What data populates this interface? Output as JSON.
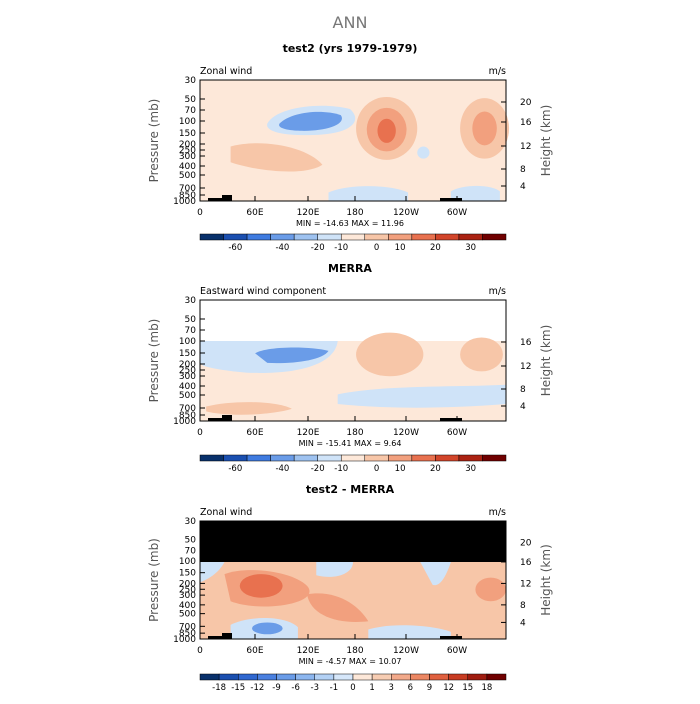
{
  "figure": {
    "title": "ANN"
  },
  "colors": {
    "scale": [
      "#08306b",
      "#1a4fb0",
      "#3f7be0",
      "#6a9ce8",
      "#9ec2f0",
      "#cfe3f8",
      "#fde8d9",
      "#f7c6a8",
      "#f2a07e",
      "#e8714f",
      "#d2452a",
      "#ab2212",
      "#700000"
    ]
  },
  "chart_data": [
    {
      "type": "heatmap",
      "title": "test2 (yrs 1979-1979)",
      "field_label": "Zonal wind",
      "units": "m/s",
      "ylabel": "Pressure (mb)",
      "ylabel_right": "Height (km)",
      "yticks": [
        "30",
        "50",
        "70",
        "100",
        "150",
        "200",
        "250",
        "300",
        "400",
        "500",
        "700",
        "850",
        "1000"
      ],
      "yticks_right": [
        "20",
        "16",
        "12",
        "8",
        "4"
      ],
      "xticks": [
        "0",
        "60E",
        "120E",
        "180",
        "120W",
        "60W"
      ],
      "stats": "MIN = -14.63   MAX =  11.96",
      "colorbar_labels": [
        "-60",
        "-40",
        "-20",
        "-10",
        "0",
        "10",
        "20",
        "30"
      ],
      "value_range": [
        -14.63,
        11.96
      ]
    },
    {
      "type": "heatmap",
      "title": "MERRA",
      "field_label": "Eastward wind component",
      "units": "m/s",
      "ylabel": "Pressure (mb)",
      "ylabel_right": "Height (km)",
      "yticks": [
        "30",
        "50",
        "70",
        "100",
        "150",
        "200",
        "250",
        "300",
        "400",
        "500",
        "700",
        "850",
        "1000"
      ],
      "yticks_right": [
        "16",
        "12",
        "8",
        "4"
      ],
      "xticks": [
        "0",
        "60E",
        "120E",
        "180",
        "120W",
        "60W"
      ],
      "stats": "MIN = -15.41   MAX =   9.64",
      "colorbar_labels": [
        "-60",
        "-40",
        "-20",
        "-10",
        "0",
        "10",
        "20",
        "30"
      ],
      "value_range": [
        -15.41,
        9.64
      ]
    },
    {
      "type": "heatmap",
      "title": "test2 - MERRA",
      "field_label": "Zonal wind",
      "units": "m/s",
      "ylabel": "Pressure (mb)",
      "ylabel_right": "Height (km)",
      "yticks": [
        "30",
        "50",
        "70",
        "100",
        "150",
        "200",
        "250",
        "300",
        "400",
        "500",
        "700",
        "850",
        "1000"
      ],
      "yticks_right": [
        "20",
        "16",
        "12",
        "8",
        "4"
      ],
      "xticks": [
        "0",
        "60E",
        "120E",
        "180",
        "120W",
        "60W"
      ],
      "stats": "MIN = -4.57   MAX =  10.07",
      "colorbar_labels": [
        "-18",
        "-15",
        "-12",
        "-9",
        "-6",
        "-3",
        "-1",
        "0",
        "1",
        "3",
        "6",
        "9",
        "12",
        "15",
        "18"
      ],
      "value_range": [
        -4.57,
        10.07
      ]
    }
  ]
}
